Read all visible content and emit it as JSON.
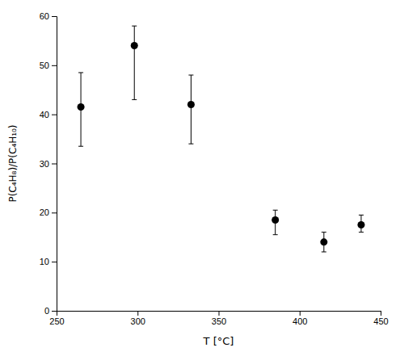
{
  "chart_data": {
    "type": "scatter",
    "x": [
      265,
      298,
      333,
      385,
      415,
      438
    ],
    "values": [
      41.5,
      54.0,
      42.0,
      18.5,
      14.0,
      17.5
    ],
    "yerr_up": [
      7.0,
      4.0,
      6.0,
      2.0,
      2.0,
      2.0
    ],
    "yerr_down": [
      8.0,
      11.0,
      8.0,
      3.0,
      2.0,
      1.5
    ],
    "xlim": [
      250,
      450
    ],
    "ylim": [
      0,
      60
    ],
    "xticks": [
      250,
      300,
      350,
      400,
      450
    ],
    "yticks": [
      0,
      10,
      20,
      30,
      40,
      50,
      60
    ],
    "xlabel": "T [°C]",
    "ylabel": "P(C₄H₈)/P(C₄H₁₀)",
    "color": "black",
    "marker": "circle"
  }
}
